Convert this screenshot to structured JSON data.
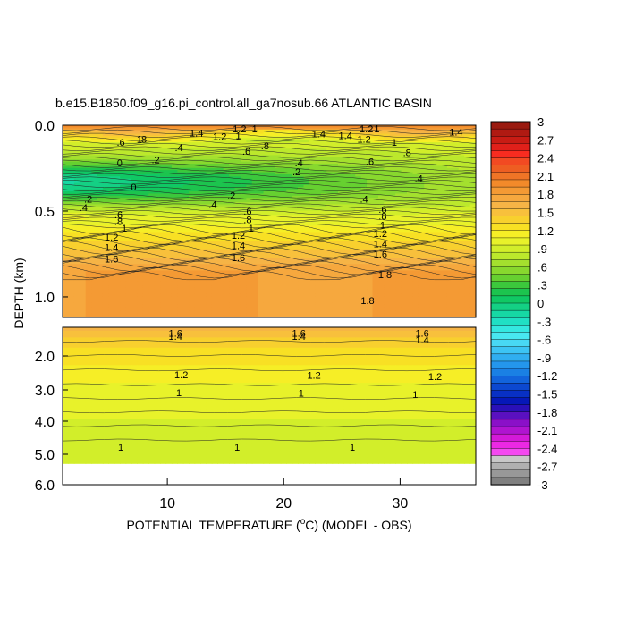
{
  "chart_data": {
    "type": "heatmap",
    "title": "b.e15.B1850.f09_g16.pi_control.all_ga7nosub.66 ATLANTIC BASIN",
    "xlabel": "POTENTIAL TEMPERATURE (°C) (MODEL - OBS)",
    "ylabel": "DEPTH (km)",
    "xlim": [
      1,
      36.5
    ],
    "x_ticks": [
      "10",
      "20",
      "30"
    ],
    "upper_panel": {
      "ylim": [
        0,
        1.12
      ],
      "y_ticks": [
        "0.0",
        "0.5",
        "1.0"
      ]
    },
    "lower_panel": {
      "ylim": [
        1.12,
        6.0
      ],
      "y_ticks": [
        "2.0",
        "3.0",
        "4.0",
        "5.0",
        "6.0"
      ],
      "data_bottom_km": 5.3
    },
    "colorbar": {
      "labels": [
        "3",
        "2.7",
        "2.4",
        "2.1",
        "1.8",
        "1.5",
        "1.2",
        ".9",
        ".6",
        ".3",
        "0",
        "-.3",
        "-.6",
        "-.9",
        "-1.2",
        "-1.5",
        "-1.8",
        "-2.1",
        "-2.4",
        "-2.7",
        "-3"
      ],
      "colors_top_to_bottom": [
        "#9a1a10",
        "#b01a12",
        "#c81c14",
        "#e0201a",
        "#f82c20",
        "#f24a22",
        "#ee5e22",
        "#f07426",
        "#f28a2a",
        "#f49a34",
        "#f6a83e",
        "#f6b446",
        "#f8c03c",
        "#f8d02e",
        "#f8e024",
        "#f6ee26",
        "#e8f22a",
        "#d2ee2a",
        "#bce82c",
        "#a4e02e",
        "#88d82e",
        "#66d030",
        "#3cc83c",
        "#1cc44e",
        "#10c864",
        "#14d084",
        "#16d8a4",
        "#20e0c4",
        "#34e8e0",
        "#48e8f0",
        "#48d8f4",
        "#3cc4f4",
        "#30aef0",
        "#2496ec",
        "#1a80e4",
        "#1264dc",
        "#0c48d0",
        "#0830c4",
        "#0618b8",
        "#2a10b8",
        "#5a10c0",
        "#8a10c8",
        "#b014d0",
        "#d41ad8",
        "#ec28e4",
        "#f448f0",
        "#c8c8c8",
        "#b0b0b0",
        "#989898",
        "#808080"
      ]
    },
    "contour_labels": [
      {
        "text": "1.2",
        "x": 16.2,
        "y": 0.02
      },
      {
        "text": "1",
        "x": 17.5,
        "y": 0.02
      },
      {
        "text": "1.2",
        "x": 27.1,
        "y": 0.02
      },
      {
        "text": "1",
        "x": 28.0,
        "y": 0.02
      },
      {
        "text": "1.4",
        "x": 12.5,
        "y": 0.045
      },
      {
        "text": "1.2",
        "x": 14.5,
        "y": 0.065
      },
      {
        "text": "1",
        "x": 16.1,
        "y": 0.06
      },
      {
        "text": "1.4",
        "x": 23.0,
        "y": 0.05
      },
      {
        "text": "1.4",
        "x": 25.3,
        "y": 0.06
      },
      {
        "text": "1.2",
        "x": 26.9,
        "y": 0.08
      },
      {
        "text": "1.4",
        "x": 34.8,
        "y": 0.04
      },
      {
        "text": "1",
        "x": 29.5,
        "y": 0.1
      },
      {
        "text": ".6",
        "x": 6.0,
        "y": 0.1
      },
      {
        "text": "1",
        "x": 7.6,
        "y": 0.08
      },
      {
        "text": "8",
        "x": 8.0,
        "y": 0.08
      },
      {
        "text": ".8",
        "x": 30.6,
        "y": 0.16
      },
      {
        "text": ".4",
        "x": 11.0,
        "y": 0.13
      },
      {
        "text": ".6",
        "x": 16.8,
        "y": 0.15
      },
      {
        "text": ".8",
        "x": 18.4,
        "y": 0.12
      },
      {
        "text": ".6",
        "x": 27.4,
        "y": 0.21
      },
      {
        "text": "0",
        "x": 5.9,
        "y": 0.22
      },
      {
        "text": ".2",
        "x": 9.0,
        "y": 0.2
      },
      {
        "text": ".4",
        "x": 21.3,
        "y": 0.22
      },
      {
        "text": ".2",
        "x": 21.1,
        "y": 0.27
      },
      {
        "text": ".4",
        "x": 31.6,
        "y": 0.31
      },
      {
        "text": "0",
        "x": 7.1,
        "y": 0.36
      },
      {
        "text": ".2",
        "x": 3.2,
        "y": 0.43
      },
      {
        "text": ".4",
        "x": 2.8,
        "y": 0.48
      },
      {
        "text": ".2",
        "x": 15.5,
        "y": 0.41
      },
      {
        "text": ".4",
        "x": 13.9,
        "y": 0.46
      },
      {
        "text": ".4",
        "x": 26.9,
        "y": 0.43
      },
      {
        "text": ".6",
        "x": 5.8,
        "y": 0.52
      },
      {
        "text": ".8",
        "x": 5.8,
        "y": 0.56
      },
      {
        "text": "1",
        "x": 6.3,
        "y": 0.6
      },
      {
        "text": ".6",
        "x": 16.9,
        "y": 0.5
      },
      {
        "text": ".8",
        "x": 16.9,
        "y": 0.55
      },
      {
        "text": "1",
        "x": 17.2,
        "y": 0.6
      },
      {
        "text": ".6",
        "x": 28.5,
        "y": 0.49
      },
      {
        "text": ".8",
        "x": 28.5,
        "y": 0.53
      },
      {
        "text": "1",
        "x": 28.5,
        "y": 0.58
      },
      {
        "text": "1.2",
        "x": 5.2,
        "y": 0.65
      },
      {
        "text": "1.4",
        "x": 5.2,
        "y": 0.71
      },
      {
        "text": "1.6",
        "x": 5.2,
        "y": 0.78
      },
      {
        "text": "1.2",
        "x": 16.1,
        "y": 0.64
      },
      {
        "text": "1.4",
        "x": 16.1,
        "y": 0.7
      },
      {
        "text": "1.6",
        "x": 16.1,
        "y": 0.77
      },
      {
        "text": "1.2",
        "x": 28.3,
        "y": 0.63
      },
      {
        "text": "1.4",
        "x": 28.3,
        "y": 0.69
      },
      {
        "text": "1.6",
        "x": 28.3,
        "y": 0.75
      },
      {
        "text": "1.8",
        "x": 28.7,
        "y": 0.87
      },
      {
        "text": "1.8",
        "x": 27.2,
        "y": 1.02
      },
      {
        "text": "1.6",
        "x": 10.7,
        "y": 1.3
      },
      {
        "text": "1.4",
        "x": 10.7,
        "y": 1.4
      },
      {
        "text": "1.6",
        "x": 21.3,
        "y": 1.3
      },
      {
        "text": "1.4",
        "x": 21.3,
        "y": 1.4
      },
      {
        "text": "1.6",
        "x": 31.9,
        "y": 1.3
      },
      {
        "text": "1.4",
        "x": 31.9,
        "y": 1.5
      },
      {
        "text": "1.2",
        "x": 11.2,
        "y": 2.55
      },
      {
        "text": "1.2",
        "x": 22.6,
        "y": 2.57
      },
      {
        "text": "1.2",
        "x": 33.0,
        "y": 2.6
      },
      {
        "text": "1",
        "x": 11.0,
        "y": 3.08
      },
      {
        "text": "1",
        "x": 21.5,
        "y": 3.1
      },
      {
        "text": "1",
        "x": 31.3,
        "y": 3.14
      },
      {
        "text": "1",
        "x": 6.0,
        "y": 4.78
      },
      {
        "text": "1",
        "x": 16.0,
        "y": 4.78
      },
      {
        "text": "1",
        "x": 25.9,
        "y": 4.78
      }
    ]
  }
}
